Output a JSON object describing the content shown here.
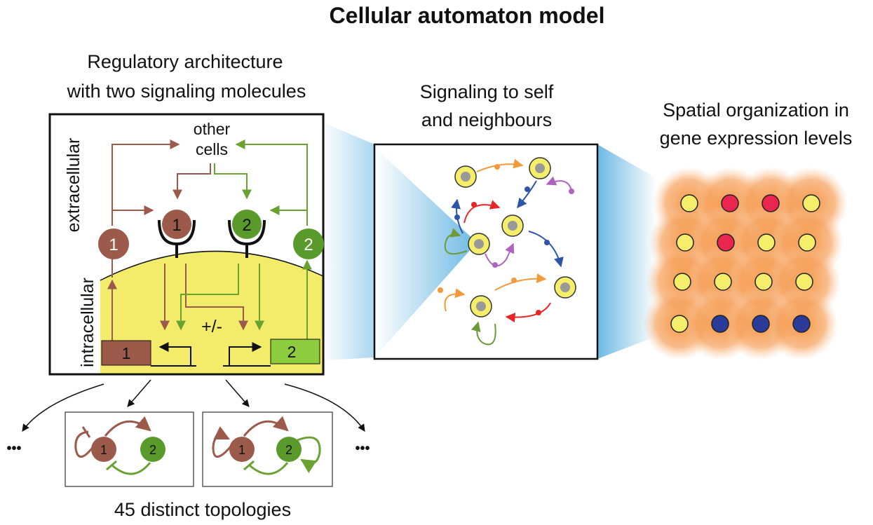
{
  "title": "Cellular automaton model",
  "left_panel": {
    "heading_line1": "Regulatory architecture",
    "heading_line2": "with two signaling molecules",
    "extracellular_label": "extracellular",
    "intracellular_label": "intracellular",
    "other_cells_line1": "other",
    "other_cells_line2": "cells",
    "molecule1": "1",
    "molecule2": "2",
    "receptor1": "1",
    "receptor2": "2",
    "gene1": "1",
    "gene2": "2",
    "regulation_sign": "+/-"
  },
  "middle_panel": {
    "heading_line1": "Signaling to self",
    "heading_line2": "and neighbours"
  },
  "right_panel": {
    "heading_line1": "Spatial organization in",
    "heading_line2": "gene expression levels",
    "grid_rows": [
      [
        "yellow",
        "red",
        "red",
        "yellow"
      ],
      [
        "yellow",
        "red",
        "yellow",
        "yellow"
      ],
      [
        "yellow",
        "yellow",
        "yellow",
        "yellow"
      ],
      [
        "yellow",
        "blue",
        "blue",
        "blue"
      ]
    ]
  },
  "topologies": {
    "caption": "45 distinct topologies",
    "ellipsis": "•••",
    "example1_node1": "1",
    "example1_node2": "2",
    "example2_node1": "1",
    "example2_node2": "2"
  },
  "colors": {
    "molecule1": "#9b5a4a",
    "molecule2": "#5a9a2a",
    "cell_yellow": "#f5ee6a",
    "cell_red": "#e8264f",
    "cell_blue": "#2a3b9a",
    "glow": "#f4913a",
    "intracellular": "#f2ec6a",
    "gene2_fill": "#8ccc3e"
  }
}
